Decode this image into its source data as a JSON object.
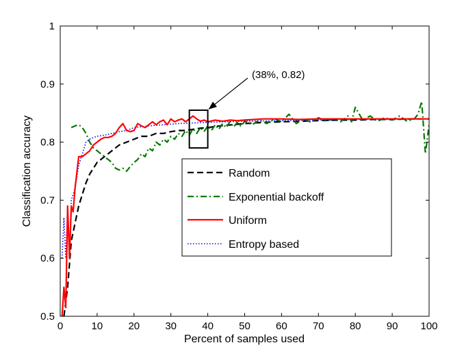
{
  "chart_data": {
    "type": "line",
    "xlabel": "Percent of samples used",
    "ylabel": "Classification accuracy",
    "xlim": [
      0,
      100
    ],
    "ylim": [
      0.5,
      1
    ],
    "xticks": [
      0,
      10,
      20,
      30,
      40,
      50,
      60,
      70,
      80,
      90,
      100
    ],
    "yticks": [
      0.5,
      0.6,
      0.7,
      0.8,
      0.9,
      1
    ],
    "ytick_labels": [
      "0.5",
      "0.6",
      "0.7",
      "0.8",
      "0.9",
      "1"
    ],
    "grid": false,
    "legend_position": "center-right",
    "series": [
      {
        "name": "Random",
        "color": "#000000",
        "style": "dashed",
        "x": [
          1,
          2,
          3,
          4,
          5,
          6,
          7,
          8,
          10,
          12,
          14,
          16,
          18,
          20,
          22,
          24,
          26,
          28,
          30,
          32,
          34,
          36,
          38,
          40,
          42,
          45,
          50,
          55,
          60,
          65,
          70,
          75,
          80,
          85,
          90,
          95,
          100
        ],
        "y": [
          0.5,
          0.55,
          0.63,
          0.66,
          0.69,
          0.71,
          0.73,
          0.745,
          0.765,
          0.775,
          0.785,
          0.795,
          0.8,
          0.805,
          0.81,
          0.81,
          0.815,
          0.815,
          0.818,
          0.82,
          0.82,
          0.822,
          0.824,
          0.825,
          0.827,
          0.829,
          0.832,
          0.834,
          0.835,
          0.836,
          0.837,
          0.838,
          0.838,
          0.839,
          0.839,
          0.84,
          0.84
        ]
      },
      {
        "name": "Exponential backoff",
        "color": "#007a00",
        "style": "dashdot",
        "x": [
          3,
          4,
          5,
          6,
          7,
          8,
          9,
          10,
          11,
          12,
          13,
          14,
          15,
          16,
          17,
          18,
          19,
          20,
          21,
          22,
          23,
          24,
          25,
          26,
          27,
          28,
          29,
          30,
          31,
          32,
          33,
          34,
          35,
          36,
          37,
          38,
          39,
          40,
          41,
          42,
          43,
          44,
          45,
          46,
          47,
          48,
          49,
          50,
          52,
          54,
          56,
          58,
          60,
          62,
          64,
          66,
          68,
          70,
          72,
          74,
          76,
          78,
          79,
          80,
          82,
          84,
          86,
          88,
          90,
          92,
          94,
          96,
          97,
          98,
          99,
          100
        ],
        "y": [
          0.825,
          0.828,
          0.83,
          0.825,
          0.815,
          0.8,
          0.79,
          0.785,
          0.78,
          0.775,
          0.77,
          0.765,
          0.755,
          0.752,
          0.755,
          0.75,
          0.758,
          0.765,
          0.77,
          0.78,
          0.775,
          0.79,
          0.785,
          0.8,
          0.795,
          0.805,
          0.8,
          0.81,
          0.805,
          0.815,
          0.81,
          0.82,
          0.812,
          0.823,
          0.815,
          0.825,
          0.818,
          0.828,
          0.82,
          0.83,
          0.822,
          0.832,
          0.825,
          0.835,
          0.826,
          0.834,
          0.827,
          0.836,
          0.83,
          0.838,
          0.832,
          0.84,
          0.835,
          0.848,
          0.832,
          0.84,
          0.834,
          0.842,
          0.836,
          0.84,
          0.835,
          0.845,
          0.835,
          0.86,
          0.838,
          0.845,
          0.836,
          0.842,
          0.838,
          0.845,
          0.836,
          0.84,
          0.848,
          0.87,
          0.78,
          0.83
        ]
      },
      {
        "name": "Uniform",
        "color": "#ff0000",
        "style": "solid",
        "x": [
          0.5,
          1,
          1.5,
          2,
          2.5,
          3,
          3.5,
          4,
          5,
          6,
          7,
          8,
          9,
          10,
          11,
          12,
          13,
          14,
          15,
          16,
          17,
          18,
          19,
          20,
          21,
          22,
          23,
          24,
          25,
          26,
          27,
          28,
          29,
          30,
          31,
          32,
          33,
          34,
          35,
          36,
          37,
          38,
          39,
          40,
          42,
          44,
          46,
          48,
          50,
          55,
          60,
          65,
          70,
          75,
          80,
          85,
          90,
          95,
          100
        ],
        "y": [
          0.5,
          0.55,
          0.515,
          0.69,
          0.6,
          0.69,
          0.68,
          0.72,
          0.775,
          0.775,
          0.78,
          0.785,
          0.795,
          0.8,
          0.805,
          0.808,
          0.808,
          0.81,
          0.815,
          0.825,
          0.832,
          0.82,
          0.818,
          0.82,
          0.832,
          0.828,
          0.825,
          0.83,
          0.835,
          0.83,
          0.835,
          0.838,
          0.83,
          0.84,
          0.835,
          0.838,
          0.84,
          0.835,
          0.84,
          0.845,
          0.84,
          0.836,
          0.838,
          0.835,
          0.838,
          0.836,
          0.838,
          0.837,
          0.838,
          0.84,
          0.84,
          0.839,
          0.84,
          0.84,
          0.84,
          0.84,
          0.84,
          0.84,
          0.84
        ]
      },
      {
        "name": "Entropy based",
        "color": "#0000ff",
        "style": "dotted",
        "x": [
          0.5,
          1,
          1.5,
          2,
          2.5,
          3,
          4,
          5,
          6,
          7,
          8,
          9,
          10,
          12,
          14,
          16,
          18,
          20,
          24,
          28,
          32,
          36,
          40,
          45,
          50,
          60,
          70,
          80,
          90,
          100
        ],
        "y": [
          0.6,
          0.67,
          0.6,
          0.68,
          0.62,
          0.7,
          0.72,
          0.76,
          0.78,
          0.8,
          0.805,
          0.808,
          0.81,
          0.812,
          0.815,
          0.818,
          0.82,
          0.825,
          0.828,
          0.83,
          0.832,
          0.833,
          0.834,
          0.835,
          0.836,
          0.837,
          0.838,
          0.839,
          0.839,
          0.84
        ]
      }
    ],
    "annotation": {
      "text": "(38%, 0.82)",
      "box_x": [
        35,
        40
      ],
      "box_y": [
        0.79,
        0.855
      ],
      "arrow_to": [
        40,
        0.855
      ]
    }
  }
}
